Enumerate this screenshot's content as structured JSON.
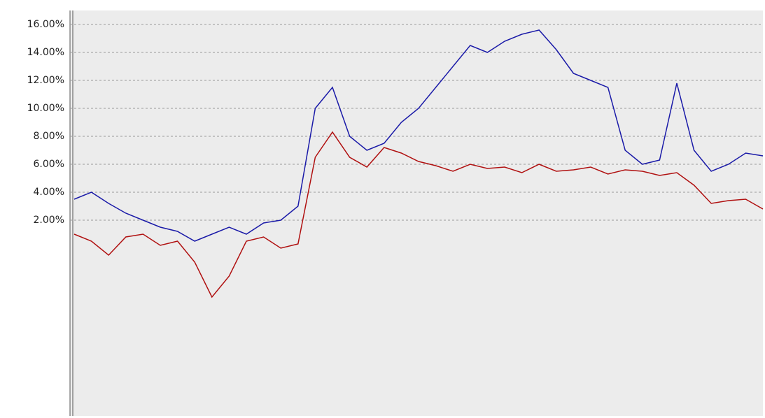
{
  "chart_data": {
    "type": "line",
    "ylim": [
      -12,
      17
    ],
    "yticks": [
      {
        "value": 16,
        "label": "16.00%"
      },
      {
        "value": 14,
        "label": "14.00%"
      },
      {
        "value": 12,
        "label": "12.00%"
      },
      {
        "value": 10,
        "label": "10.00%"
      },
      {
        "value": 8,
        "label": "8.00%"
      },
      {
        "value": 6,
        "label": "6.00%"
      },
      {
        "value": 4,
        "label": "4.00%"
      },
      {
        "value": 2,
        "label": "2.00%"
      }
    ],
    "grid": true,
    "series": [
      {
        "color": "#1a1aa8",
        "values": [
          3.5,
          4,
          3.2,
          2.5,
          2,
          1.5,
          1.2,
          0.5,
          1,
          1.5,
          1,
          1.8,
          2,
          3,
          10,
          11.5,
          8,
          7,
          7.5,
          9,
          10,
          11.5,
          13,
          14.5,
          14,
          14.8,
          15.3,
          15.6,
          14.2,
          12.5,
          12,
          11.5,
          7,
          6,
          6.3,
          11.8,
          7,
          5.5,
          6,
          6.8,
          6.6
        ]
      },
      {
        "color": "#b01010",
        "values": [
          1,
          0.5,
          -0.5,
          0.8,
          1,
          0.2,
          0.5,
          -1,
          -3.5,
          -2,
          0.5,
          0.8,
          0,
          0.3,
          6.5,
          8.3,
          6.5,
          5.8,
          7.2,
          6.8,
          6.2,
          5.9,
          5.5,
          6,
          5.7,
          5.8,
          5.4,
          6,
          5.5,
          5.6,
          5.8,
          5.3,
          5.6,
          5.5,
          5.2,
          5.4,
          4.5,
          3.2,
          3.4,
          3.5,
          2.8
        ]
      }
    ]
  }
}
